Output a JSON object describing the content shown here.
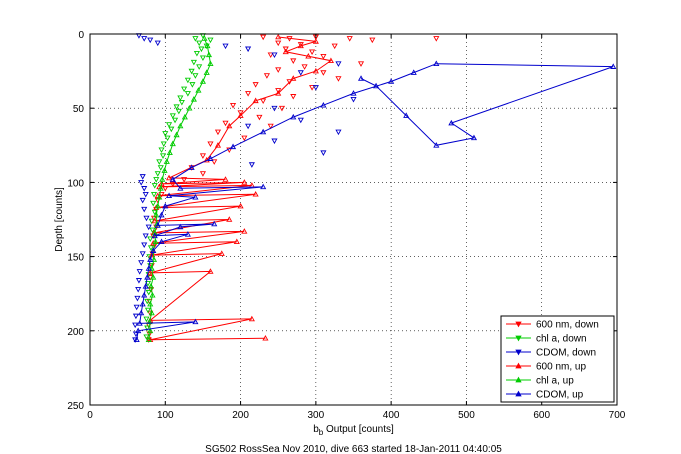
{
  "chart_data": {
    "type": "scatter",
    "caption": "SG502 RossSea Nov 2010, dive 663 started 18-Jan-2011 04:40:05",
    "xlabel_main": "b",
    "xlabel_sub": "b",
    "xlabel_rest": " Output [counts]",
    "ylabel": "Depth [counts]",
    "xlim": [
      0,
      700
    ],
    "ylim": [
      0,
      250
    ],
    "y_reversed": true,
    "xticks": [
      0,
      100,
      200,
      300,
      400,
      500,
      600,
      700
    ],
    "yticks": [
      0,
      50,
      100,
      150,
      200,
      250
    ],
    "grid": true,
    "legend_position": "bottom-right",
    "series": [
      {
        "name": "600 nm, down",
        "color": "#ff0000",
        "marker": "triangle-down",
        "line": false,
        "points": [
          [
            230,
            2
          ],
          [
            265,
            3
          ],
          [
            300,
            2
          ],
          [
            345,
            3
          ],
          [
            375,
            4
          ],
          [
            460,
            3
          ],
          [
            250,
            6
          ],
          [
            280,
            7
          ],
          [
            325,
            8
          ],
          [
            260,
            10
          ],
          [
            295,
            12
          ],
          [
            240,
            14
          ],
          [
            310,
            15
          ],
          [
            270,
            18
          ],
          [
            360,
            20
          ],
          [
            285,
            22
          ],
          [
            250,
            24
          ],
          [
            310,
            26
          ],
          [
            235,
            28
          ],
          [
            330,
            30
          ],
          [
            265,
            32
          ],
          [
            220,
            34
          ],
          [
            295,
            36
          ],
          [
            250,
            38
          ],
          [
            210,
            40
          ],
          [
            270,
            42
          ],
          [
            230,
            45
          ],
          [
            190,
            48
          ],
          [
            255,
            50
          ],
          [
            200,
            53
          ],
          [
            225,
            56
          ],
          [
            180,
            60
          ],
          [
            240,
            62
          ],
          [
            170,
            66
          ],
          [
            205,
            70
          ],
          [
            160,
            74
          ],
          [
            185,
            78
          ],
          [
            150,
            82
          ],
          [
            165,
            86
          ],
          [
            135,
            90
          ],
          [
            150,
            94
          ],
          [
            125,
            98
          ],
          [
            110,
            101
          ],
          [
            100,
            104
          ],
          [
            95,
            108
          ],
          [
            90,
            112
          ],
          [
            88,
            118
          ],
          [
            85,
            124
          ],
          [
            88,
            130
          ],
          [
            84,
            136
          ],
          [
            86,
            142
          ],
          [
            83,
            148
          ],
          [
            82,
            156
          ],
          [
            80,
            164
          ],
          [
            81,
            172
          ],
          [
            79,
            180
          ],
          [
            80,
            188
          ],
          [
            78,
            196
          ],
          [
            79,
            202
          ],
          [
            78,
            206
          ]
        ]
      },
      {
        "name": "chl a, down",
        "color": "#00cc00",
        "marker": "triangle-down",
        "line": false,
        "points": [
          [
            150,
            1
          ],
          [
            140,
            3
          ],
          [
            160,
            4
          ],
          [
            145,
            6
          ],
          [
            155,
            8
          ],
          [
            148,
            10
          ],
          [
            142,
            13
          ],
          [
            150,
            16
          ],
          [
            138,
            19
          ],
          [
            145,
            22
          ],
          [
            135,
            25
          ],
          [
            140,
            28
          ],
          [
            130,
            31
          ],
          [
            136,
            34
          ],
          [
            125,
            37
          ],
          [
            130,
            40
          ],
          [
            120,
            43
          ],
          [
            122,
            46
          ],
          [
            115,
            49
          ],
          [
            118,
            52
          ],
          [
            110,
            55
          ],
          [
            113,
            58
          ],
          [
            105,
            61
          ],
          [
            108,
            64
          ],
          [
            100,
            67
          ],
          [
            103,
            70
          ],
          [
            98,
            74
          ],
          [
            95,
            78
          ],
          [
            97,
            82
          ],
          [
            92,
            86
          ],
          [
            94,
            90
          ],
          [
            90,
            94
          ],
          [
            88,
            98
          ],
          [
            86,
            102
          ],
          [
            85,
            108
          ],
          [
            84,
            114
          ],
          [
            86,
            120
          ],
          [
            82,
            126
          ],
          [
            83,
            132
          ],
          [
            80,
            138
          ],
          [
            81,
            144
          ],
          [
            79,
            150
          ],
          [
            80,
            156
          ],
          [
            78,
            162
          ],
          [
            77,
            168
          ],
          [
            78,
            174
          ],
          [
            76,
            180
          ],
          [
            77,
            186
          ],
          [
            75,
            192
          ],
          [
            76,
            198
          ],
          [
            75,
            204
          ]
        ]
      },
      {
        "name": "CDOM, down",
        "color": "#0000cc",
        "marker": "triangle-down",
        "line": false,
        "points": [
          [
            65,
            1
          ],
          [
            72,
            3
          ],
          [
            80,
            4
          ],
          [
            90,
            6
          ],
          [
            180,
            8
          ],
          [
            210,
            10
          ],
          [
            245,
            14
          ],
          [
            330,
            20
          ],
          [
            280,
            26
          ],
          [
            300,
            36
          ],
          [
            350,
            44
          ],
          [
            245,
            50
          ],
          [
            280,
            58
          ],
          [
            210,
            62
          ],
          [
            330,
            66
          ],
          [
            245,
            72
          ],
          [
            310,
            80
          ],
          [
            215,
            88
          ],
          [
            70,
            96
          ],
          [
            68,
            100
          ],
          [
            72,
            104
          ],
          [
            74,
            108
          ],
          [
            70,
            112
          ],
          [
            72,
            118
          ],
          [
            75,
            124
          ],
          [
            78,
            130
          ],
          [
            74,
            136
          ],
          [
            72,
            142
          ],
          [
            70,
            148
          ],
          [
            68,
            154
          ],
          [
            66,
            160
          ],
          [
            65,
            166
          ],
          [
            64,
            172
          ],
          [
            63,
            178
          ],
          [
            62,
            184
          ],
          [
            61,
            190
          ],
          [
            60,
            196
          ],
          [
            61,
            202
          ],
          [
            60,
            206
          ]
        ]
      },
      {
        "name": "600 nm, up",
        "color": "#ff0000",
        "marker": "triangle-up",
        "line": true,
        "points": [
          [
            233,
            205
          ],
          [
            80,
            206
          ],
          [
            215,
            192
          ],
          [
            80,
            193
          ],
          [
            160,
            160
          ],
          [
            80,
            161
          ],
          [
            175,
            148
          ],
          [
            82,
            149
          ],
          [
            195,
            140
          ],
          [
            84,
            141
          ],
          [
            205,
            133
          ],
          [
            85,
            134
          ],
          [
            185,
            125
          ],
          [
            86,
            126
          ],
          [
            200,
            116
          ],
          [
            88,
            117
          ],
          [
            220,
            108
          ],
          [
            90,
            109
          ],
          [
            215,
            102
          ],
          [
            92,
            103
          ],
          [
            205,
            100
          ],
          [
            95,
            101
          ],
          [
            180,
            98
          ],
          [
            105,
            97
          ],
          [
            155,
            85
          ],
          [
            170,
            75
          ],
          [
            185,
            62
          ],
          [
            200,
            55
          ],
          [
            220,
            45
          ],
          [
            250,
            40
          ],
          [
            270,
            30
          ],
          [
            300,
            25
          ],
          [
            320,
            18
          ],
          [
            290,
            15
          ],
          [
            260,
            12
          ],
          [
            280,
            8
          ],
          [
            300,
            5
          ],
          [
            250,
            2
          ]
        ]
      },
      {
        "name": "chl a, up",
        "color": "#00cc00",
        "marker": "triangle-up",
        "line": true,
        "points": [
          [
            78,
            206
          ],
          [
            80,
            200
          ],
          [
            79,
            194
          ],
          [
            82,
            188
          ],
          [
            80,
            182
          ],
          [
            83,
            176
          ],
          [
            81,
            170
          ],
          [
            84,
            164
          ],
          [
            82,
            158
          ],
          [
            85,
            152
          ],
          [
            84,
            146
          ],
          [
            87,
            140
          ],
          [
            86,
            134
          ],
          [
            89,
            128
          ],
          [
            88,
            122
          ],
          [
            90,
            116
          ],
          [
            92,
            110
          ],
          [
            94,
            104
          ],
          [
            96,
            98
          ],
          [
            99,
            92
          ],
          [
            102,
            86
          ],
          [
            106,
            80
          ],
          [
            110,
            74
          ],
          [
            115,
            68
          ],
          [
            120,
            62
          ],
          [
            126,
            56
          ],
          [
            132,
            50
          ],
          [
            138,
            44
          ],
          [
            144,
            38
          ],
          [
            150,
            32
          ],
          [
            155,
            26
          ],
          [
            160,
            20
          ],
          [
            158,
            14
          ],
          [
            156,
            8
          ],
          [
            152,
            3
          ]
        ]
      },
      {
        "name": "CDOM, up",
        "color": "#0000cc",
        "marker": "triangle-up",
        "line": true,
        "points": [
          [
            62,
            206
          ],
          [
            64,
            200
          ],
          [
            140,
            194
          ],
          [
            66,
            195
          ],
          [
            68,
            188
          ],
          [
            70,
            182
          ],
          [
            72,
            176
          ],
          [
            74,
            170
          ],
          [
            76,
            164
          ],
          [
            78,
            158
          ],
          [
            80,
            152
          ],
          [
            84,
            146
          ],
          [
            95,
            140
          ],
          [
            130,
            135
          ],
          [
            86,
            136
          ],
          [
            120,
            130
          ],
          [
            165,
            128
          ],
          [
            90,
            129
          ],
          [
            95,
            122
          ],
          [
            100,
            116
          ],
          [
            140,
            110
          ],
          [
            105,
            109
          ],
          [
            230,
            103
          ],
          [
            120,
            104
          ],
          [
            110,
            98
          ],
          [
            135,
            90
          ],
          [
            160,
            84
          ],
          [
            190,
            76
          ],
          [
            230,
            66
          ],
          [
            270,
            56
          ],
          [
            310,
            48
          ],
          [
            350,
            40
          ],
          [
            400,
            32
          ],
          [
            430,
            26
          ],
          [
            460,
            20
          ],
          [
            695,
            22
          ],
          [
            480,
            60
          ],
          [
            510,
            70
          ],
          [
            460,
            75
          ],
          [
            420,
            55
          ],
          [
            380,
            35
          ],
          [
            360,
            30
          ]
        ]
      }
    ]
  }
}
